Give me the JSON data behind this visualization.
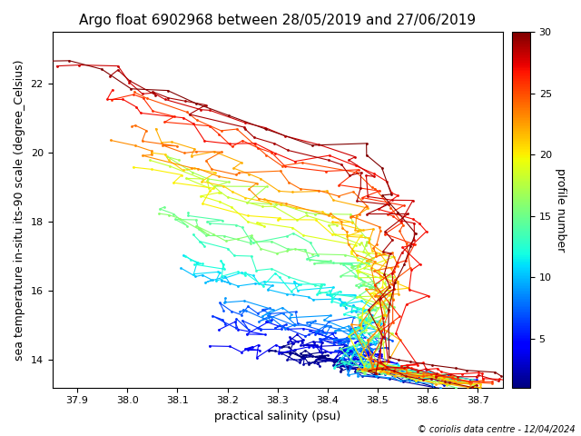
{
  "title": "Argo float 6902968 between 28/05/2019 and 27/06/2019",
  "xlabel": "practical salinity (psu)",
  "ylabel": "sea temperature in-situ its-90 scale (degree_Celsius)",
  "colorbar_label": "profile number",
  "colorbar_ticks": [
    5,
    10,
    15,
    20,
    25,
    30
  ],
  "colorbar_min": 1,
  "colorbar_max": 30,
  "n_profiles": 30,
  "xlim": [
    37.85,
    38.75
  ],
  "ylim": [
    13.2,
    23.5
  ],
  "xticks": [
    37.9,
    38.0,
    38.1,
    38.2,
    38.3,
    38.4,
    38.5,
    38.6,
    38.7
  ],
  "copyright_text": "© coriolis data centre - 12/04/2024",
  "title_fontsize": 11,
  "axis_label_fontsize": 9,
  "cbar_label_fontsize": 9,
  "figsize": [
    6.4,
    4.8
  ],
  "dpi": 100
}
